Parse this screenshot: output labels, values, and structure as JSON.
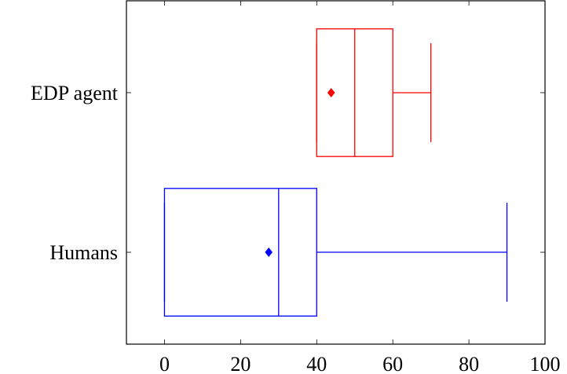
{
  "chart_data": {
    "type": "boxplot",
    "title": "",
    "xlabel": "",
    "ylabel": "",
    "xlim": [
      -10,
      100
    ],
    "xticks": [
      0,
      20,
      40,
      60,
      80,
      100
    ],
    "xtick_labels": [
      "0",
      "20",
      "40",
      "60",
      "80",
      "100"
    ],
    "categories": [
      "Humans",
      "EDP agent"
    ],
    "grid": false,
    "series": [
      {
        "name": "Humans",
        "color": "#0000ff",
        "min": 0,
        "q1": 0,
        "median": 30,
        "q3": 40,
        "max": 90,
        "mean": 27.4
      },
      {
        "name": "EDP agent",
        "color": "#ff0000",
        "min": 40,
        "q1": 40,
        "median": 50,
        "q3": 60,
        "max": 70,
        "mean": 43.8
      }
    ]
  }
}
